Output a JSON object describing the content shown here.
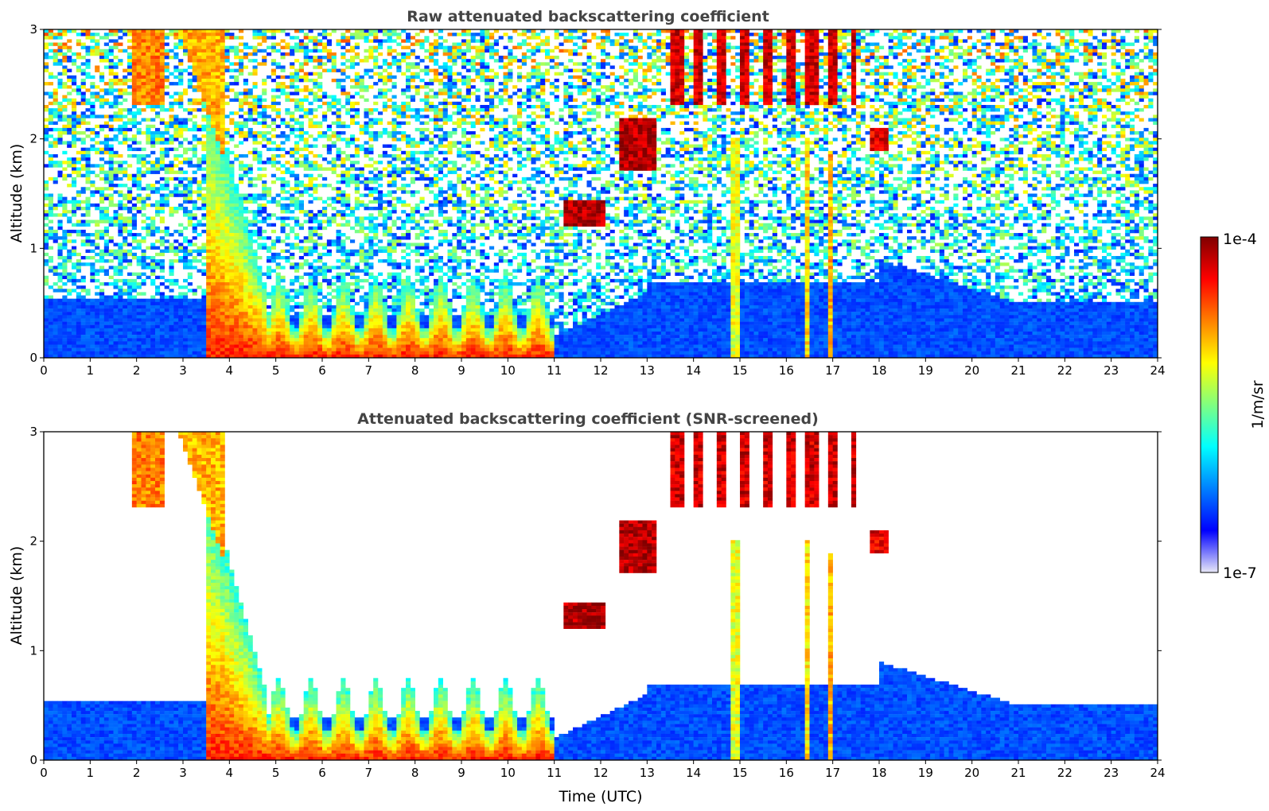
{
  "chart_data": [
    {
      "type": "heatmap",
      "title": "Raw attenuated backscattering coefficient",
      "xlabel": "",
      "ylabel": "Altitude (km)",
      "xlim": [
        0,
        24
      ],
      "ylim": [
        0,
        3
      ],
      "xticks": [
        "0",
        "1",
        "2",
        "3",
        "4",
        "5",
        "6",
        "7",
        "8",
        "9",
        "10",
        "11",
        "12",
        "13",
        "14",
        "15",
        "16",
        "17",
        "18",
        "19",
        "20",
        "21",
        "22",
        "23",
        "24"
      ],
      "yticks": [
        "0",
        "1",
        "2",
        "3"
      ],
      "screened": false
    },
    {
      "type": "heatmap",
      "title": "Attenuated backscattering coefficient (SNR-screened)",
      "xlabel": "Time (UTC)",
      "ylabel": "Altitude (km)",
      "xlim": [
        0,
        24
      ],
      "ylim": [
        0,
        3
      ],
      "xticks": [
        "0",
        "1",
        "2",
        "3",
        "4",
        "5",
        "6",
        "7",
        "8",
        "9",
        "10",
        "11",
        "12",
        "13",
        "14",
        "15",
        "16",
        "17",
        "18",
        "19",
        "20",
        "21",
        "22",
        "23",
        "24"
      ],
      "yticks": [
        "0",
        "1",
        "2",
        "3"
      ],
      "screened": true
    }
  ],
  "colorbar": {
    "label": "1/m/sr",
    "max_label": "1e-4",
    "min_label": "1e-7",
    "scale": "log",
    "range": [
      1e-07,
      0.0001
    ],
    "colormap": [
      "#e8e8f8",
      "#0000ff",
      "#0080ff",
      "#00ffff",
      "#80ff80",
      "#ffff00",
      "#ff8000",
      "#ff0000",
      "#800000"
    ]
  }
}
